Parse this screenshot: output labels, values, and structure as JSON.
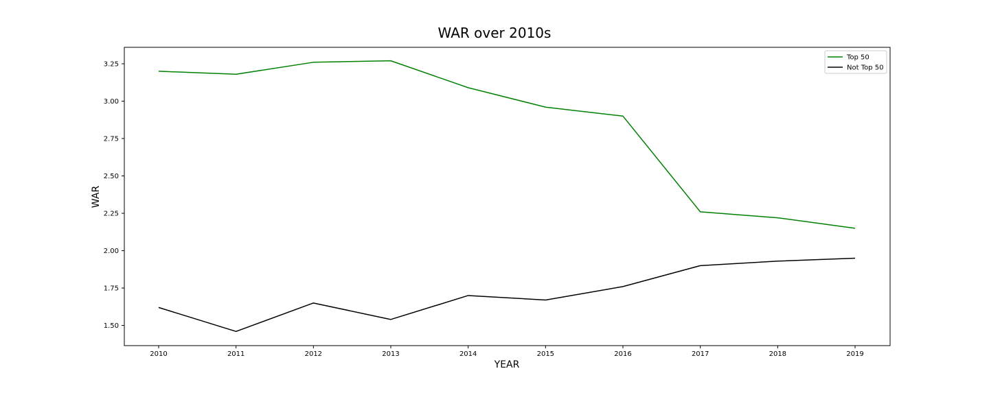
{
  "chart_data": {
    "type": "line",
    "title": "WAR over 2010s",
    "xlabel": "YEAR",
    "ylabel": "WAR",
    "x": [
      "2010",
      "2011",
      "2012",
      "2013",
      "2014",
      "2015",
      "2016",
      "2017",
      "2018",
      "2019"
    ],
    "ylim": [
      1.365,
      3.36
    ],
    "yticks": [
      "1.50",
      "1.75",
      "2.00",
      "2.25",
      "2.50",
      "2.75",
      "3.00",
      "3.25"
    ],
    "grid": false,
    "legend_position": "top-right",
    "series": [
      {
        "name": "Top 50",
        "color": "#008000",
        "values": [
          3.2,
          3.18,
          3.26,
          3.27,
          3.09,
          2.96,
          2.9,
          2.26,
          2.22,
          2.15
        ]
      },
      {
        "name": "Not Top 50",
        "color": "#000000",
        "values": [
          1.62,
          1.46,
          1.65,
          1.54,
          1.7,
          1.67,
          1.76,
          1.9,
          1.93,
          1.95
        ]
      }
    ]
  }
}
